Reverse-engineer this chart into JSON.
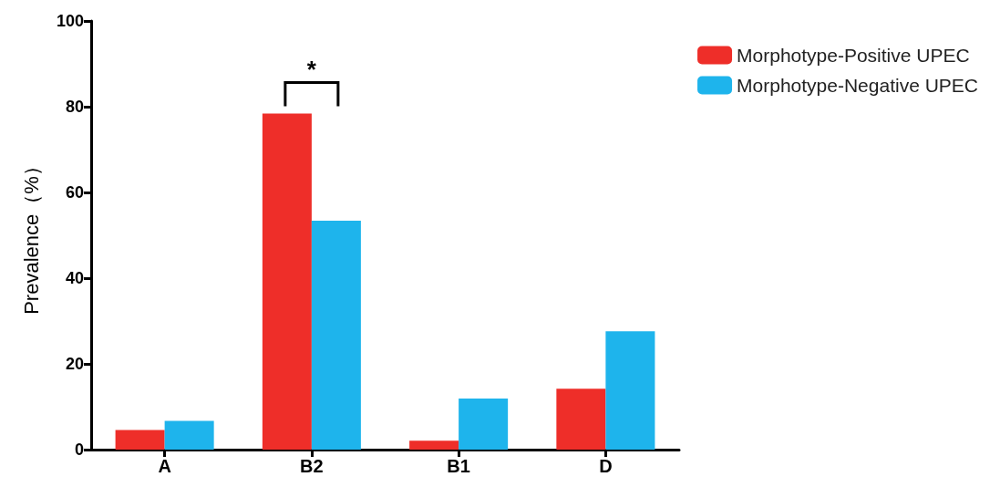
{
  "chart_data": {
    "type": "bar",
    "ylabel": "Prevalence（%）",
    "categories": [
      "A",
      "B2",
      "B1",
      "D"
    ],
    "series": [
      {
        "name": "Morphotype-Positive UPEC",
        "color": "#ee2e29",
        "values": [
          4.6,
          78.4,
          2.1,
          14.2
        ]
      },
      {
        "name": "Morphotype-Negative UPEC",
        "color": "#1eb4ec",
        "values": [
          6.7,
          53.4,
          11.9,
          27.6
        ]
      }
    ],
    "ylim": [
      0,
      100
    ],
    "yticks": [
      0,
      20,
      40,
      60,
      80,
      100
    ],
    "grid": false,
    "legend": "top right",
    "annotations": [
      "*"
    ]
  }
}
